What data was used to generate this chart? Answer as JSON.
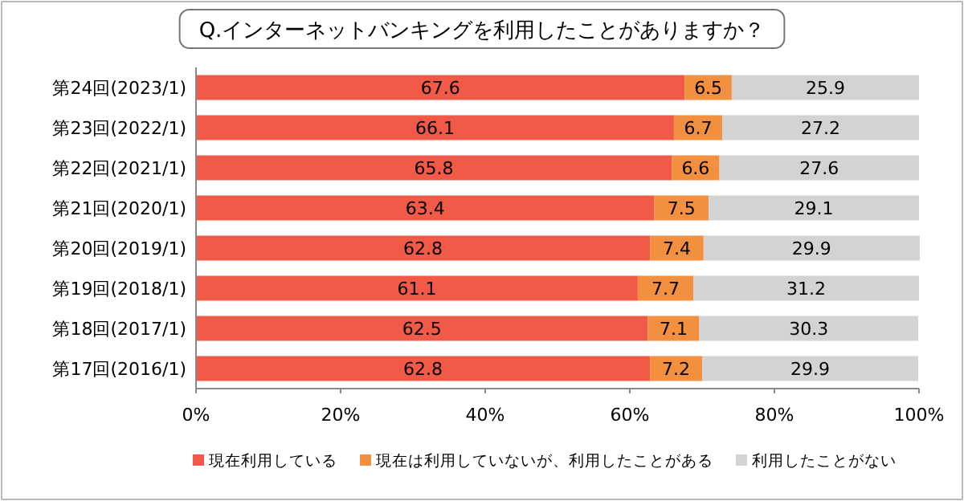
{
  "chart_data": {
    "type": "bar",
    "orientation": "horizontal",
    "stacked": true,
    "title": "Q.インターネットバンキングを利用したことがありますか？",
    "categories": [
      "第24回(2023/1)",
      "第23回(2022/1)",
      "第22回(2021/1)",
      "第21回(2020/1)",
      "第20回(2019/1)",
      "第19回(2018/1)",
      "第18回(2017/1)",
      "第17回(2016/1)"
    ],
    "series": [
      {
        "name": "現在利用している",
        "color": "#f05a46",
        "values": [
          67.6,
          66.1,
          65.8,
          63.4,
          62.8,
          61.1,
          62.5,
          62.8
        ]
      },
      {
        "name": "現在は利用していないが、利用したことがある",
        "color": "#f39040",
        "values": [
          6.5,
          6.7,
          6.6,
          7.5,
          7.4,
          7.7,
          7.1,
          7.2
        ]
      },
      {
        "name": "利用したことがない",
        "color": "#d3d3d3",
        "values": [
          25.9,
          27.2,
          27.6,
          29.1,
          29.9,
          31.2,
          30.3,
          29.9
        ]
      }
    ],
    "xlim": [
      0,
      100
    ],
    "xticks": [
      {
        "value": 0,
        "label": "0%"
      },
      {
        "value": 20,
        "label": "20%"
      },
      {
        "value": 40,
        "label": "40%"
      },
      {
        "value": 60,
        "label": "60%"
      },
      {
        "value": 80,
        "label": "80%"
      },
      {
        "value": 100,
        "label": "100%"
      }
    ],
    "data_labels": true,
    "grid": false,
    "legend": "bottom"
  }
}
